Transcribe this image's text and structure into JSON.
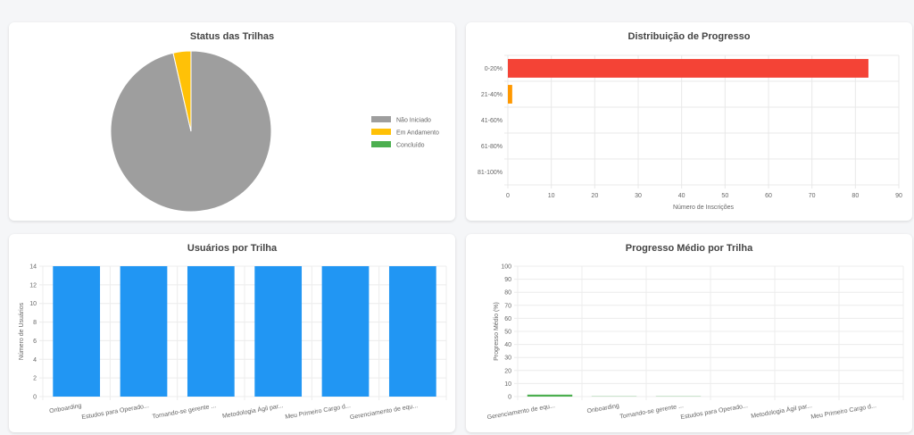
{
  "chart_data": [
    {
      "id": "status",
      "type": "pie",
      "title": "Status das Trilhas",
      "categories": [
        "Não Iniciado",
        "Em Andamento",
        "Concluído"
      ],
      "values": [
        81,
        3,
        0
      ],
      "colors": [
        "#9e9e9e",
        "#ffc107",
        "#4caf50"
      ],
      "legend": "right"
    },
    {
      "id": "dist",
      "type": "bar",
      "orientation": "horizontal",
      "title": "Distribuição de Progresso",
      "categories": [
        "0-20%",
        "21-40%",
        "41-60%",
        "61-80%",
        "81-100%"
      ],
      "values": [
        83,
        1,
        0,
        0,
        0
      ],
      "colors": [
        "#f44336",
        "#ff9800",
        "#ffeb3b",
        "#8bc34a",
        "#4caf50"
      ],
      "xlabel": "Número de Inscrições",
      "xlim": [
        0,
        90
      ],
      "xticks": [
        0,
        10,
        20,
        30,
        40,
        50,
        60,
        70,
        80,
        90
      ]
    },
    {
      "id": "users",
      "type": "bar",
      "title": "Usuários por Trilha",
      "categories": [
        "Onboarding",
        "Estudos para Operado...",
        "Tornando-se gerente ...",
        "Metodologia Ágil par...",
        "Meu Primeiro Cargo d...",
        "Gerenciamento de equ..."
      ],
      "values": [
        14,
        14,
        14,
        14,
        14,
        14
      ],
      "color": "#2196f3",
      "ylabel": "Número de Usuários",
      "ylim": [
        0,
        14
      ],
      "yticks": [
        0,
        2,
        4,
        6,
        8,
        10,
        12,
        14
      ]
    },
    {
      "id": "avg",
      "type": "bar",
      "title": "Progresso Médio por Trilha",
      "categories": [
        "Gerenciamento de equ...",
        "Onboarding",
        "Tornando-se gerente ...",
        "Estudos para Operado...",
        "Metodologia Ágil par...",
        "Meu Primeiro Cargo d..."
      ],
      "values": [
        1.5,
        0.5,
        0.5,
        0,
        0,
        0
      ],
      "color": "#4caf50",
      "ylabel": "Progresso Médio (%)",
      "ylim": [
        0,
        100
      ],
      "yticks": [
        0,
        10,
        20,
        30,
        40,
        50,
        60,
        70,
        80,
        90,
        100
      ]
    }
  ]
}
